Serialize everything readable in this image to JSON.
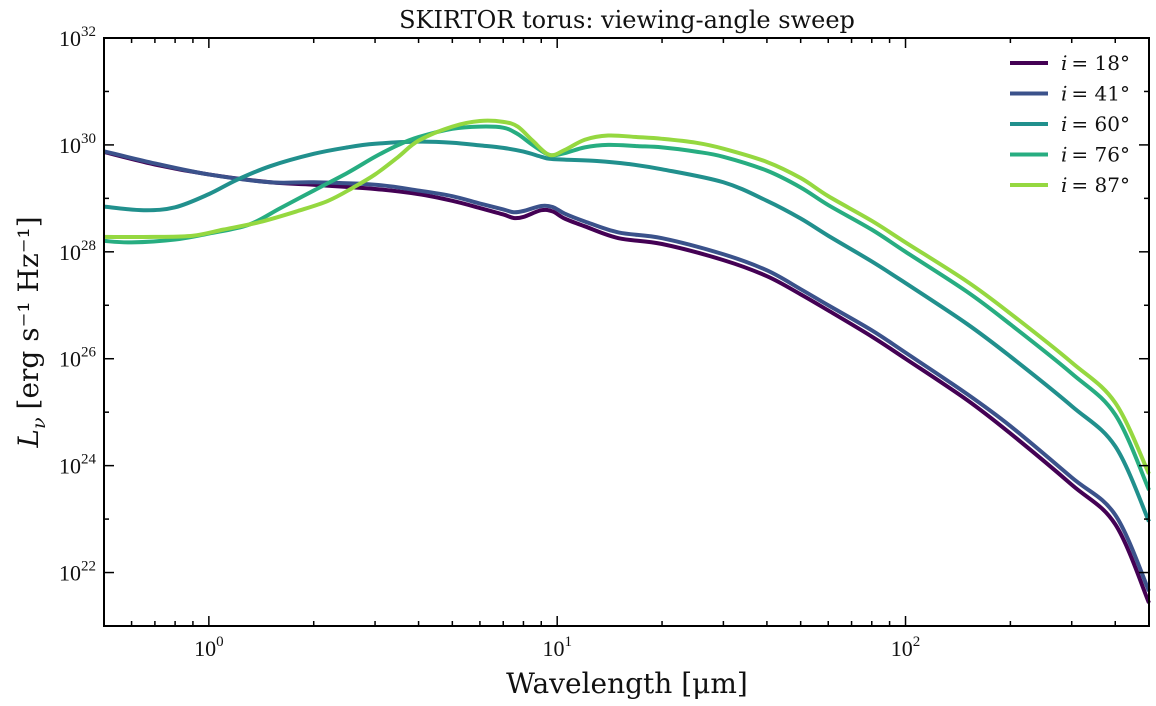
{
  "chart_data": {
    "type": "line",
    "title": "SKIRTOR torus: viewing-angle sweep",
    "xlabel": "Wavelength [μm]",
    "ylabel_main": "L",
    "ylabel_sub": "ν",
    "ylabel_units": "[erg s⁻¹ Hz⁻¹]",
    "x_scale": "log",
    "y_scale": "log",
    "xlim": [
      0.5,
      500
    ],
    "ylim": [
      1e+21,
      1e+32
    ],
    "x_ticks": [
      {
        "value": 1,
        "base": "10",
        "exp": "0"
      },
      {
        "value": 10,
        "base": "10",
        "exp": "1"
      },
      {
        "value": 100,
        "base": "10",
        "exp": "2"
      }
    ],
    "y_ticks": [
      {
        "value": 1e+22,
        "base": "10",
        "exp": "22"
      },
      {
        "value": 1e+24,
        "base": "10",
        "exp": "24"
      },
      {
        "value": 1e+26,
        "base": "10",
        "exp": "26"
      },
      {
        "value": 1e+28,
        "base": "10",
        "exp": "28"
      },
      {
        "value": 1e+30,
        "base": "10",
        "exp": "30"
      },
      {
        "value": 1e+32,
        "base": "10",
        "exp": "32"
      }
    ],
    "legend_position": "top-right",
    "grid": false,
    "series": [
      {
        "name": "i = 18°",
        "legend_var": "i",
        "legend_value": "= 18°",
        "color": "#440154",
        "points": [
          [
            0.5,
            7.4e+29
          ],
          [
            0.7,
            4.3e+29
          ],
          [
            1.0,
            2.8e+29
          ],
          [
            1.5,
            2e+29
          ],
          [
            2.0,
            1.8e+29
          ],
          [
            3.0,
            1.5e+29
          ],
          [
            4.0,
            1.2e+29
          ],
          [
            5.0,
            9e+28
          ],
          [
            6.0,
            6.6e+28
          ],
          [
            7.0,
            5e+28
          ],
          [
            7.5,
            4.3e+28
          ],
          [
            8.0,
            4.5e+28
          ],
          [
            9.0,
            6e+28
          ],
          [
            9.7,
            5.7e+28
          ],
          [
            10.5,
            4.2e+28
          ],
          [
            12,
            3e+28
          ],
          [
            15,
            1.8e+28
          ],
          [
            20,
            1.4e+28
          ],
          [
            30,
            7e+27
          ],
          [
            40,
            3.5e+27
          ],
          [
            50,
            1.6e+27
          ],
          [
            60,
            8e+26
          ],
          [
            80,
            2.6e+26
          ],
          [
            100,
            1e+26
          ],
          [
            150,
            1.7e+25
          ],
          [
            200,
            4e+24
          ],
          [
            300,
            4.4e+23
          ],
          [
            400,
            8e+22
          ],
          [
            500,
            2.7e+21
          ]
        ]
      },
      {
        "name": "i = 41°",
        "legend_var": "i",
        "legend_value": "= 41°",
        "color": "#3b528b",
        "points": [
          [
            0.5,
            7.6e+29
          ],
          [
            0.7,
            4.5e+29
          ],
          [
            1.0,
            2.8e+29
          ],
          [
            1.5,
            2e+29
          ],
          [
            2.0,
            2e+29
          ],
          [
            3.0,
            1.8e+29
          ],
          [
            4.0,
            1.4e+29
          ],
          [
            5.0,
            1.1e+29
          ],
          [
            6.0,
            8e+28
          ],
          [
            7.0,
            6.2e+28
          ],
          [
            7.5,
            5.5e+28
          ],
          [
            8.0,
            5.8e+28
          ],
          [
            9.0,
            7.2e+28
          ],
          [
            9.7,
            6.9e+28
          ],
          [
            10.5,
            5.2e+28
          ],
          [
            12,
            3.7e+28
          ],
          [
            15,
            2.3e+28
          ],
          [
            20,
            1.8e+28
          ],
          [
            30,
            9e+27
          ],
          [
            40,
            4.5e+27
          ],
          [
            50,
            2e+27
          ],
          [
            60,
            1e+27
          ],
          [
            80,
            3.4e+26
          ],
          [
            100,
            1.3e+26
          ],
          [
            150,
            2.2e+25
          ],
          [
            200,
            5.5e+24
          ],
          [
            300,
            6e+23
          ],
          [
            400,
            1.2e+23
          ],
          [
            500,
            4.5e+21
          ]
        ]
      },
      {
        "name": "i = 60°",
        "legend_var": "i",
        "legend_value": "= 60°",
        "color": "#21908d",
        "points": [
          [
            0.5,
            7e+28
          ],
          [
            0.65,
            6e+28
          ],
          [
            0.8,
            6.8e+28
          ],
          [
            1.0,
            1.2e+29
          ],
          [
            1.2,
            2.2e+29
          ],
          [
            1.5,
            4e+29
          ],
          [
            2.0,
            6.8e+29
          ],
          [
            2.5,
            9e+29
          ],
          [
            3.0,
            1.05e+30
          ],
          [
            4.0,
            1.15e+30
          ],
          [
            5.0,
            1.1e+30
          ],
          [
            6.0,
            9.8e+29
          ],
          [
            7.0,
            8.8e+29
          ],
          [
            8.0,
            7.5e+29
          ],
          [
            9.0,
            6e+29
          ],
          [
            9.5,
            5.5e+29
          ],
          [
            10.5,
            5.3e+29
          ],
          [
            13,
            5e+29
          ],
          [
            16,
            4.4e+29
          ],
          [
            20,
            3.5e+29
          ],
          [
            30,
            2e+29
          ],
          [
            40,
            9e+28
          ],
          [
            50,
            4.2e+28
          ],
          [
            60,
            2e+28
          ],
          [
            80,
            6.6e+27
          ],
          [
            100,
            2.6e+27
          ],
          [
            150,
            4.5e+26
          ],
          [
            200,
            1.1e+26
          ],
          [
            300,
            1.3e+25
          ],
          [
            400,
            2.3e+24
          ],
          [
            500,
            9e+22
          ]
        ]
      },
      {
        "name": "i = 76°",
        "legend_var": "i",
        "legend_value": "= 76°",
        "color": "#27ad81",
        "points": [
          [
            0.5,
            1.6e+28
          ],
          [
            0.6,
            1.5e+28
          ],
          [
            0.8,
            1.7e+28
          ],
          [
            1.0,
            2.2e+28
          ],
          [
            1.3,
            3.2e+28
          ],
          [
            1.6,
            6.5e+28
          ],
          [
            2.0,
            1.4e+29
          ],
          [
            2.5,
            3e+29
          ],
          [
            3.0,
            6e+29
          ],
          [
            3.5,
            1e+30
          ],
          [
            4.0,
            1.4e+30
          ],
          [
            5.0,
            2e+30
          ],
          [
            6.0,
            2.2e+30
          ],
          [
            7.0,
            2.1e+30
          ],
          [
            7.7,
            1.6e+30
          ],
          [
            8.5,
            1e+30
          ],
          [
            9.5,
            6.5e+29
          ],
          [
            10.5,
            7e+29
          ],
          [
            12,
            9e+29
          ],
          [
            14,
            1e+30
          ],
          [
            17,
            9.5e+29
          ],
          [
            20,
            9e+29
          ],
          [
            25,
            7.5e+29
          ],
          [
            30,
            6e+29
          ],
          [
            40,
            3.3e+29
          ],
          [
            50,
            1.6e+29
          ],
          [
            60,
            7.5e+28
          ],
          [
            80,
            2.6e+28
          ],
          [
            100,
            1e+28
          ],
          [
            150,
            1.8e+27
          ],
          [
            200,
            4.4e+26
          ],
          [
            300,
            5.3e+25
          ],
          [
            400,
            9e+24
          ],
          [
            500,
            3.5e+23
          ]
        ]
      },
      {
        "name": "i = 87°",
        "legend_var": "i",
        "legend_value": "= 87°",
        "color": "#95d840",
        "points": [
          [
            0.5,
            1.9e+28
          ],
          [
            0.7,
            1.9e+28
          ],
          [
            0.9,
            2e+28
          ],
          [
            1.1,
            2.6e+28
          ],
          [
            1.4,
            3.6e+28
          ],
          [
            1.8,
            5.8e+28
          ],
          [
            2.2,
            9e+28
          ],
          [
            2.6,
            1.6e+29
          ],
          [
            3.0,
            2.8e+29
          ],
          [
            3.5,
            6e+29
          ],
          [
            4.0,
            1.2e+30
          ],
          [
            5.0,
            2.2e+30
          ],
          [
            6.0,
            2.8e+30
          ],
          [
            7.0,
            2.7e+30
          ],
          [
            7.7,
            2.2e+30
          ],
          [
            8.5,
            1.2e+30
          ],
          [
            9.5,
            6.5e+29
          ],
          [
            10.5,
            8e+29
          ],
          [
            12,
            1.25e+30
          ],
          [
            14,
            1.5e+30
          ],
          [
            17,
            1.4e+30
          ],
          [
            20,
            1.3e+30
          ],
          [
            25,
            1.1e+30
          ],
          [
            30,
            8.5e+29
          ],
          [
            40,
            4.8e+29
          ],
          [
            50,
            2.4e+29
          ],
          [
            60,
            1.1e+29
          ],
          [
            80,
            3.8e+28
          ],
          [
            100,
            1.5e+28
          ],
          [
            150,
            2.8e+27
          ],
          [
            200,
            7e+26
          ],
          [
            300,
            8.5e+25
          ],
          [
            400,
            1.5e+25
          ],
          [
            500,
            7e+23
          ]
        ]
      }
    ]
  }
}
